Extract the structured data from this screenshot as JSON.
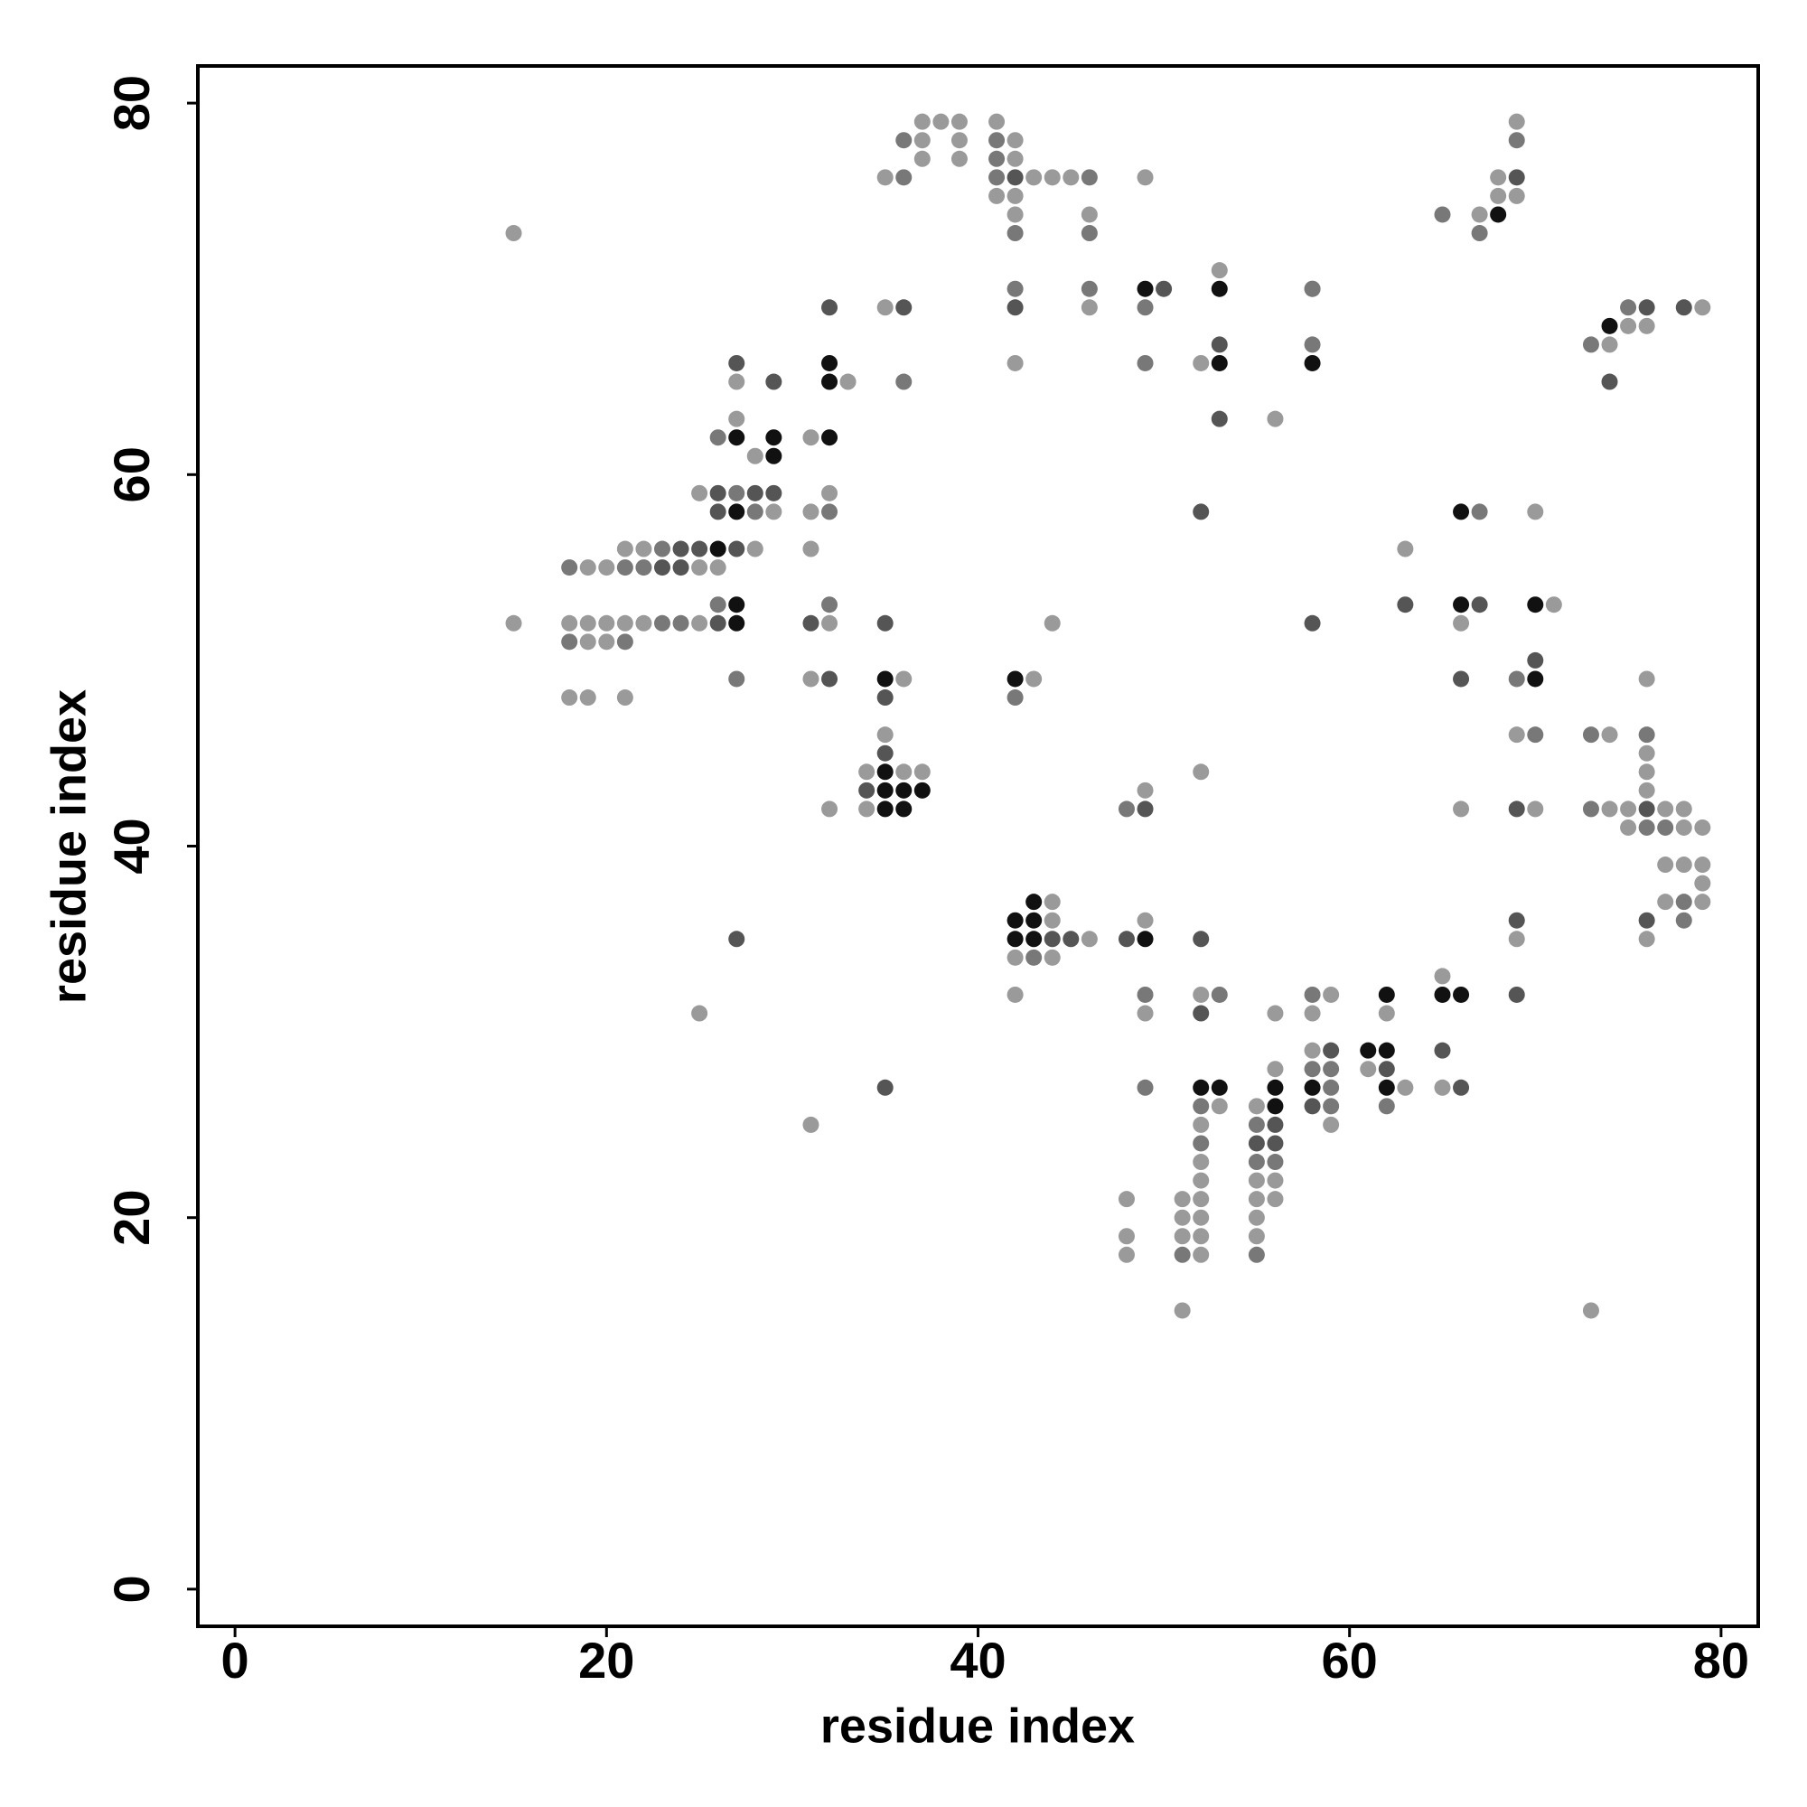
{
  "chart_data": {
    "type": "scatter",
    "xlabel": "residue index",
    "ylabel": "residue index",
    "xlim": [
      -2,
      82
    ],
    "ylim": [
      -2,
      82
    ],
    "xticks": [
      0,
      20,
      40,
      60,
      80
    ],
    "yticks": [
      0,
      20,
      40,
      60,
      80
    ],
    "grid": false,
    "series": [
      {
        "color": "#9a9a9a",
        "x": [
          37,
          38,
          39,
          41,
          69,
          37,
          39,
          42,
          37,
          39,
          42,
          35,
          43,
          44,
          45,
          49,
          68,
          41,
          42,
          68,
          69,
          42,
          46,
          67,
          15,
          53,
          58,
          35,
          46,
          79,
          75,
          76,
          74,
          42,
          52,
          27,
          33,
          27,
          56,
          31,
          28,
          25,
          32,
          29,
          31,
          70,
          21,
          22,
          28,
          31,
          63,
          19,
          20,
          25,
          26,
          71,
          15,
          18,
          19,
          20,
          21,
          22,
          25,
          32,
          44,
          66,
          19,
          20,
          31,
          36,
          43,
          76,
          18,
          19,
          21,
          35,
          69,
          74,
          76,
          34,
          36,
          37,
          52,
          76,
          49,
          76,
          32,
          34,
          66,
          70,
          74,
          75,
          77,
          78,
          75,
          78,
          79,
          77,
          78,
          79,
          79,
          44,
          77,
          79,
          44,
          49,
          46,
          69,
          76,
          42,
          44,
          65,
          42,
          52,
          59,
          25,
          49,
          56,
          58,
          62,
          58,
          56,
          61,
          63,
          65,
          53,
          55,
          31,
          52,
          59,
          52,
          52,
          55,
          56,
          48,
          51,
          52,
          55,
          56,
          51,
          52,
          55,
          48,
          51,
          52,
          55,
          48,
          52,
          51,
          73
        ],
        "values": [
          79,
          79,
          79,
          79,
          79,
          78,
          78,
          78,
          77,
          77,
          77,
          76,
          76,
          76,
          76,
          76,
          76,
          75,
          75,
          75,
          75,
          74,
          74,
          74,
          73,
          71,
          70,
          69,
          69,
          69,
          68,
          68,
          67,
          66,
          66,
          65,
          65,
          63,
          63,
          62,
          61,
          59,
          59,
          58,
          58,
          58,
          56,
          56,
          56,
          56,
          56,
          55,
          55,
          55,
          55,
          53,
          52,
          52,
          52,
          52,
          52,
          52,
          52,
          52,
          52,
          52,
          51,
          51,
          49,
          49,
          49,
          49,
          48,
          48,
          48,
          46,
          46,
          46,
          45,
          44,
          44,
          44,
          44,
          44,
          43,
          43,
          42,
          42,
          42,
          42,
          42,
          42,
          42,
          42,
          41,
          41,
          41,
          39,
          39,
          39,
          38,
          37,
          37,
          37,
          36,
          36,
          35,
          35,
          35,
          34,
          34,
          33,
          32,
          32,
          32,
          31,
          31,
          31,
          31,
          31,
          29,
          28,
          28,
          27,
          27,
          26,
          26,
          25,
          25,
          25,
          23,
          22,
          22,
          22,
          21,
          21,
          21,
          21,
          21,
          20,
          20,
          20,
          19,
          19,
          19,
          19,
          18,
          18,
          15,
          15
        ]
      },
      {
        "color": "#787878",
        "x": [
          36,
          41,
          69,
          41,
          36,
          41,
          46,
          65,
          42,
          46,
          67,
          42,
          46,
          58,
          49,
          75,
          58,
          73,
          49,
          36,
          26,
          27,
          28,
          32,
          67,
          23,
          18,
          21,
          22,
          26,
          32,
          23,
          24,
          18,
          21,
          27,
          69,
          42,
          70,
          73,
          76,
          76,
          77,
          48,
          73,
          78,
          78,
          43,
          49,
          53,
          58,
          58,
          59,
          49,
          59,
          52,
          59,
          62,
          55,
          52,
          55,
          56,
          51,
          55
        ],
        "values": [
          78,
          78,
          78,
          77,
          76,
          76,
          76,
          74,
          73,
          73,
          73,
          70,
          70,
          70,
          69,
          69,
          67,
          67,
          66,
          65,
          62,
          59,
          58,
          58,
          58,
          56,
          55,
          55,
          55,
          53,
          53,
          52,
          52,
          51,
          51,
          49,
          49,
          48,
          46,
          46,
          46,
          41,
          41,
          42,
          42,
          37,
          36,
          34,
          32,
          32,
          32,
          28,
          28,
          27,
          27,
          26,
          26,
          26,
          25,
          24,
          23,
          23,
          18,
          18
        ]
      },
      {
        "color": "#555555",
        "x": [
          42,
          69,
          32,
          36,
          42,
          76,
          78,
          50,
          53,
          29,
          74,
          27,
          53,
          26,
          28,
          29,
          26,
          52,
          24,
          25,
          27,
          23,
          24,
          63,
          67,
          26,
          31,
          35,
          58,
          70,
          32,
          66,
          35,
          35,
          34,
          49,
          69,
          76,
          69,
          76,
          27,
          44,
          45,
          48,
          52,
          69,
          52,
          59,
          65,
          62,
          35,
          66,
          58,
          56,
          55,
          56
        ],
        "values": [
          76,
          76,
          69,
          69,
          69,
          69,
          69,
          70,
          67,
          65,
          65,
          66,
          63,
          59,
          59,
          59,
          58,
          58,
          56,
          56,
          56,
          55,
          55,
          53,
          53,
          52,
          52,
          52,
          52,
          50,
          49,
          49,
          48,
          45,
          43,
          42,
          42,
          42,
          36,
          36,
          35,
          35,
          35,
          35,
          35,
          32,
          31,
          29,
          29,
          28,
          27,
          27,
          26,
          25,
          24,
          24
        ]
      },
      {
        "color": "#111111",
        "x": [
          68,
          49,
          53,
          74,
          32,
          53,
          58,
          32,
          27,
          29,
          32,
          29,
          27,
          66,
          26,
          27,
          66,
          70,
          27,
          35,
          42,
          70,
          35,
          35,
          36,
          37,
          35,
          36,
          43,
          42,
          43,
          42,
          43,
          49,
          62,
          65,
          66,
          61,
          62,
          52,
          53,
          56,
          58,
          62,
          56
        ],
        "values": [
          74,
          70,
          70,
          68,
          66,
          66,
          66,
          65,
          62,
          62,
          62,
          61,
          58,
          58,
          56,
          53,
          53,
          53,
          52,
          49,
          49,
          49,
          44,
          43,
          43,
          43,
          42,
          42,
          37,
          36,
          36,
          35,
          35,
          35,
          32,
          32,
          32,
          29,
          29,
          27,
          27,
          27,
          27,
          27,
          26
        ]
      }
    ]
  }
}
